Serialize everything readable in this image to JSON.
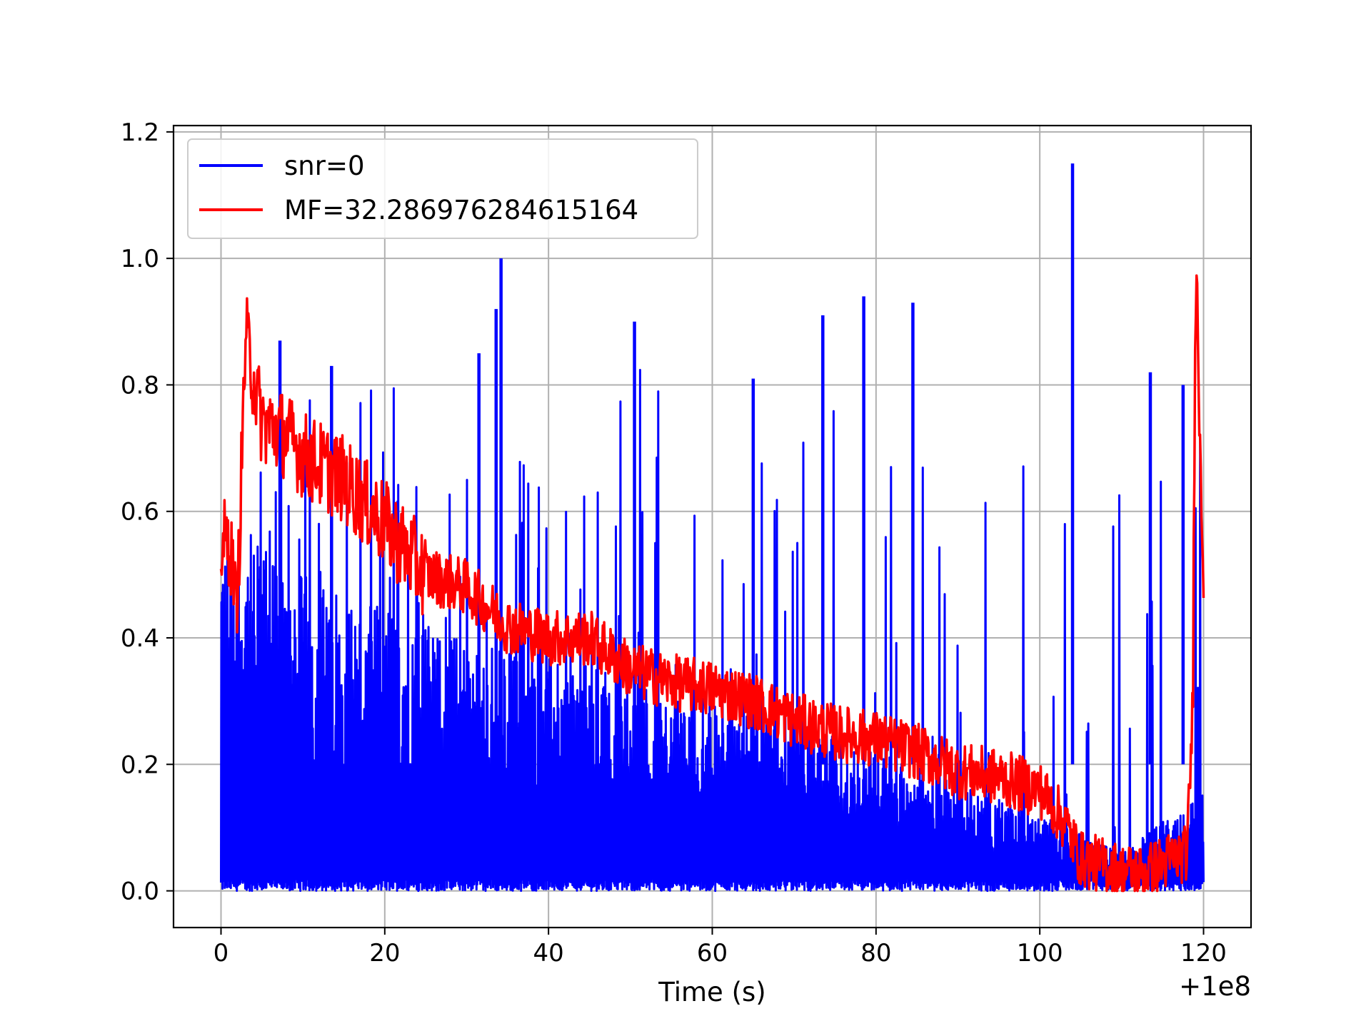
{
  "chart_data": {
    "type": "line",
    "title": "",
    "xlabel": "Time (s)",
    "ylabel": "",
    "x_offset_text": "+1e8",
    "xlim": [
      -5.8,
      125.8
    ],
    "ylim": [
      -0.058,
      1.21
    ],
    "x_ticks": [
      0,
      20,
      40,
      60,
      80,
      100,
      120
    ],
    "x_tick_labels": [
      "0",
      "20",
      "40",
      "60",
      "80",
      "100",
      "120"
    ],
    "y_ticks": [
      0.0,
      0.2,
      0.4,
      0.6,
      0.8,
      1.0,
      1.2
    ],
    "y_tick_labels": [
      "0.0",
      "0.2",
      "0.4",
      "0.6",
      "0.8",
      "1.0",
      "1.2"
    ],
    "grid": true,
    "legend_position": "top-left",
    "colors": {
      "snr": "#0000ff",
      "mf": "#ff0000"
    },
    "series": [
      {
        "name": "snr=0",
        "color": "#0000ff",
        "description_points": {
          "x": [
            0,
            10,
            20,
            30,
            40,
            50,
            60,
            70,
            80,
            90,
            100,
            110,
            120
          ],
          "max_envelope": [
            0.64,
            0.83,
            0.8,
            0.85,
            0.63,
            0.9,
            0.65,
            0.72,
            0.94,
            0.7,
            0.71,
            0.68,
            0.8
          ],
          "upper_band": [
            0.6,
            0.5,
            0.45,
            0.4,
            0.37,
            0.34,
            0.3,
            0.27,
            0.22,
            0.17,
            0.12,
            0.06,
            0.16
          ],
          "min_envelope": [
            0.0,
            0.0,
            0.0,
            0.0,
            0.0,
            0.0,
            0.0,
            0.0,
            0.0,
            0.0,
            0.0,
            0.0,
            0.0
          ],
          "spikes": [
            {
              "x": 34.2,
              "y": 1.0
            },
            {
              "x": 104.0,
              "y": 1.15
            },
            {
              "x": 33.6,
              "y": 0.92
            },
            {
              "x": 78.5,
              "y": 0.94
            },
            {
              "x": 84.5,
              "y": 0.93
            },
            {
              "x": 50.5,
              "y": 0.9
            },
            {
              "x": 73.5,
              "y": 0.91
            },
            {
              "x": 7.2,
              "y": 0.87
            },
            {
              "x": 31.5,
              "y": 0.85
            },
            {
              "x": 13.5,
              "y": 0.83
            },
            {
              "x": 113.5,
              "y": 0.82
            },
            {
              "x": 65.0,
              "y": 0.81
            },
            {
              "x": 117.5,
              "y": 0.8
            }
          ]
        }
      },
      {
        "name": "MF=32.286976284615164",
        "color": "#ff0000",
        "description_points": {
          "x": [
            0,
            1,
            2,
            3,
            5,
            8,
            10,
            15,
            20,
            25,
            30,
            35,
            40,
            45,
            50,
            55,
            60,
            65,
            70,
            75,
            80,
            85,
            90,
            95,
            100,
            103,
            105,
            108,
            110,
            113,
            116,
            118,
            118.7,
            119,
            119.3,
            119.6,
            120
          ],
          "y": [
            0.55,
            0.55,
            0.45,
            0.88,
            0.74,
            0.72,
            0.69,
            0.65,
            0.58,
            0.5,
            0.48,
            0.42,
            0.4,
            0.4,
            0.35,
            0.33,
            0.32,
            0.3,
            0.27,
            0.25,
            0.24,
            0.22,
            0.19,
            0.18,
            0.16,
            0.11,
            0.05,
            0.04,
            0.03,
            0.03,
            0.05,
            0.06,
            0.3,
            0.98,
            0.9,
            0.7,
            0.53
          ]
        }
      }
    ]
  }
}
